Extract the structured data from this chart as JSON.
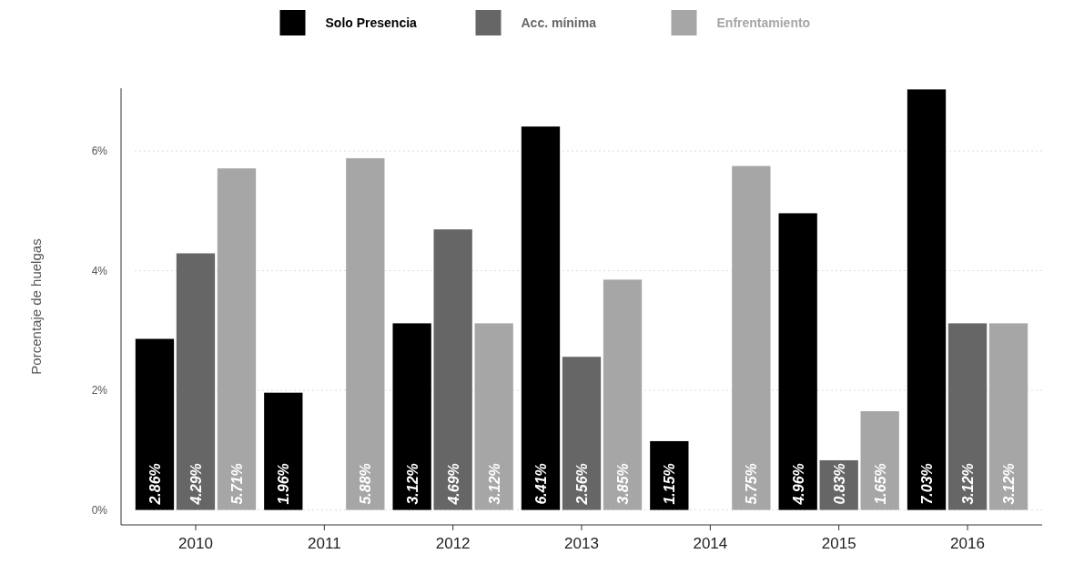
{
  "chart_data": {
    "type": "bar",
    "ylabel": "Porcentaje de huelgas",
    "categories": [
      "2010",
      "2011",
      "2012",
      "2013",
      "2014",
      "2015",
      "2016"
    ],
    "series": [
      {
        "name": "Solo Presencia",
        "color": "#000000",
        "values": [
          2.86,
          1.96,
          3.12,
          6.41,
          1.15,
          4.96,
          7.03
        ],
        "value_labels": [
          "2.86%",
          "1.96%",
          "3.12%",
          "6.41%",
          "1.15%",
          "4.96%",
          "7.03%"
        ]
      },
      {
        "name": "Acc. mínima",
        "color": "#666666",
        "values": [
          4.29,
          null,
          4.69,
          2.56,
          null,
          0.83,
          3.12
        ],
        "value_labels": [
          "4.29%",
          null,
          "4.69%",
          "2.56%",
          null,
          "0.83%",
          "3.12%"
        ]
      },
      {
        "name": "Enfrentamiento",
        "color": "#a6a6a6",
        "values": [
          5.71,
          5.88,
          3.12,
          3.85,
          5.75,
          1.65,
          3.12
        ],
        "value_labels": [
          "5.71%",
          "5.88%",
          "3.12%",
          "3.85%",
          "5.75%",
          "1.65%",
          "3.12%"
        ]
      }
    ],
    "ylim": [
      -0.25,
      7.05
    ],
    "yticks": [
      {
        "value": 0,
        "label": "0%"
      },
      {
        "value": 2,
        "label": "2%"
      },
      {
        "value": 4,
        "label": "4%"
      },
      {
        "value": 6,
        "label": "6%"
      }
    ],
    "grid": "y",
    "legend": "top"
  }
}
